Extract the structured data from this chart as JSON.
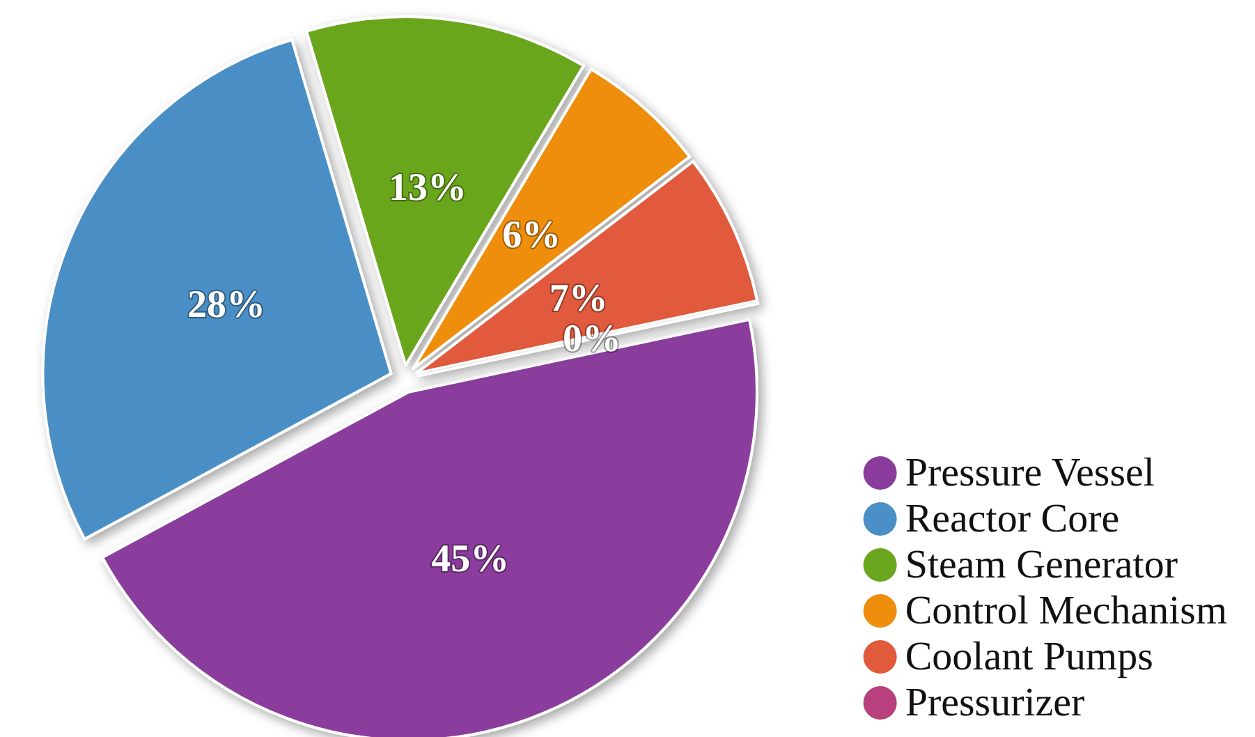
{
  "chart_data": {
    "type": "pie",
    "categories": [
      "Pressure Vessel",
      "Reactor Core",
      "Steam Generator",
      "Control Mechanism",
      "Coolant Pumps",
      "Pressurizer"
    ],
    "values": [
      45,
      28,
      13,
      6,
      7,
      0
    ],
    "value_labels": [
      "45%",
      "28%",
      "13%",
      "6%",
      "7%",
      "0%"
    ],
    "colors": [
      "#8a3c9c",
      "#4a8fc6",
      "#6aa61e",
      "#ef8e0c",
      "#e15a3c",
      "#b8407c"
    ],
    "legend": "bottom right"
  }
}
